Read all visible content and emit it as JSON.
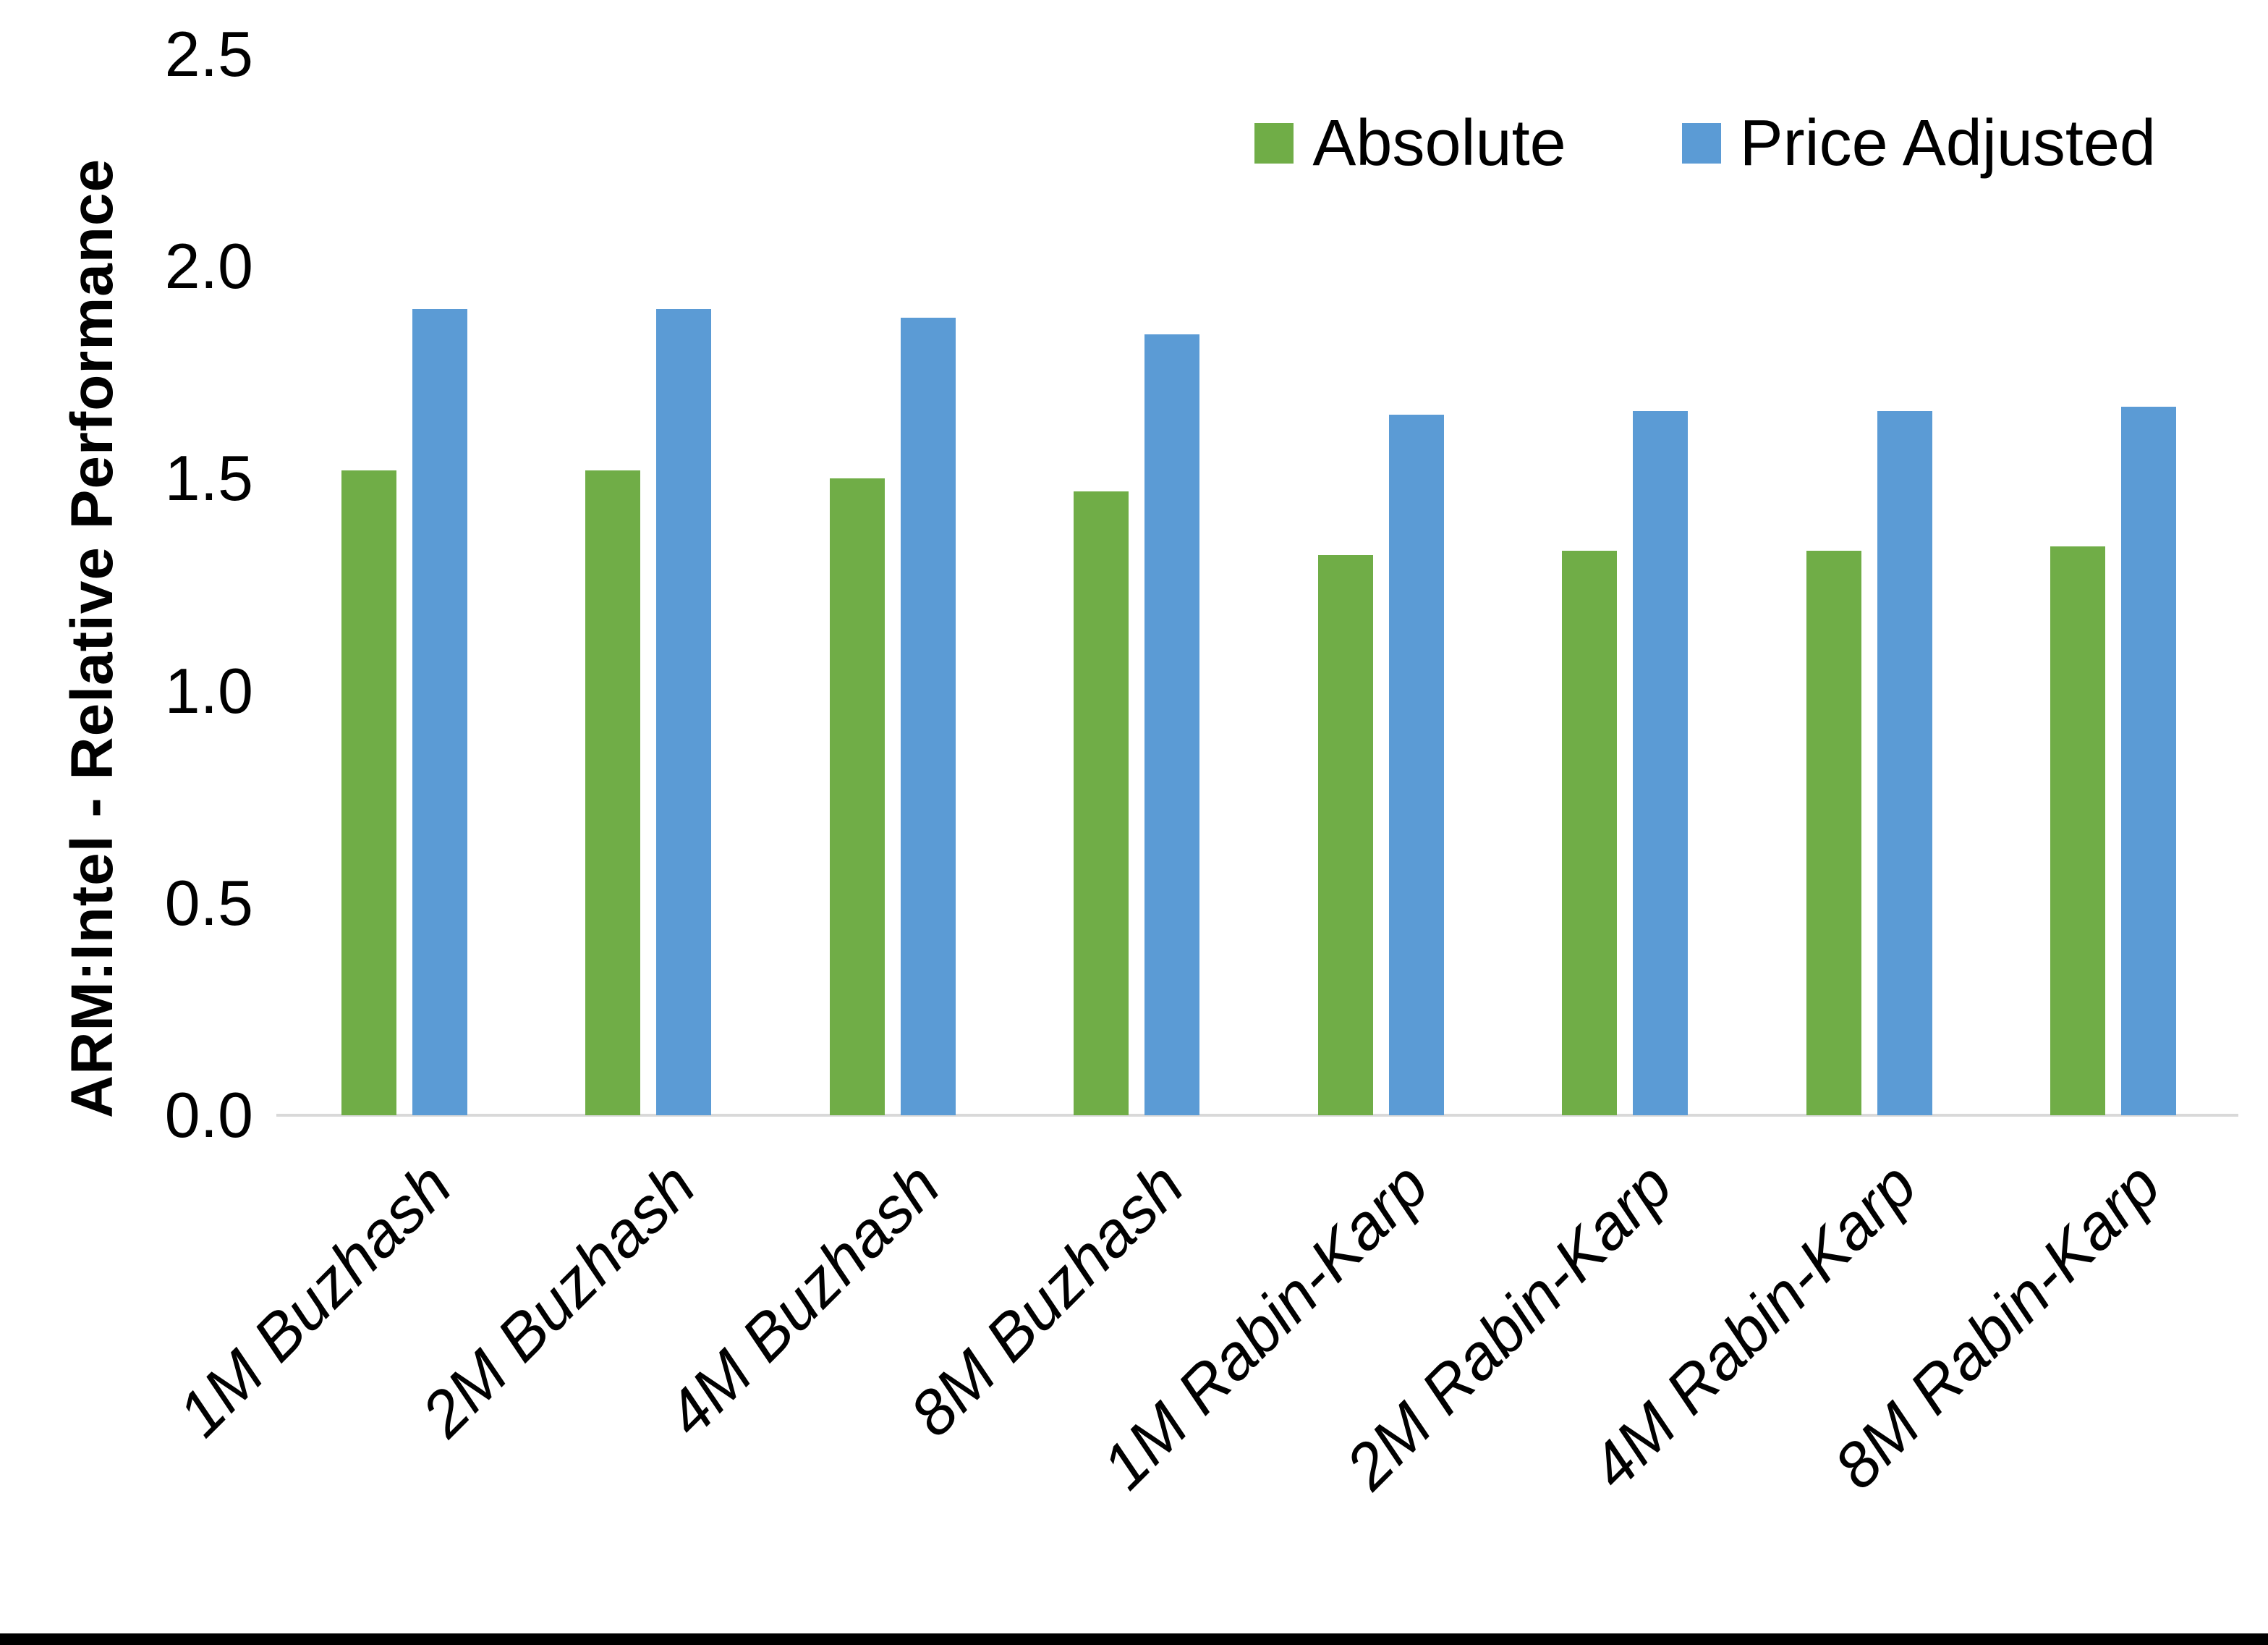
{
  "chart_data": {
    "type": "bar",
    "title": "",
    "xlabel": "",
    "ylabel": "ARM:Intel - Relative Performance",
    "categories": [
      "1M Buzhash",
      "2M Buzhash",
      "4M Buzhash",
      "8M Buzhash",
      "1M Rabin-Karp",
      "2M Rabin-Karp",
      "4M Rabin-Karp",
      "8M Rabin-Karp"
    ],
    "series": [
      {
        "name": "Absolute",
        "color": "#70AD47",
        "values": [
          1.52,
          1.52,
          1.5,
          1.47,
          1.32,
          1.33,
          1.33,
          1.34
        ]
      },
      {
        "name": "Price Adjusted",
        "color": "#5B9BD5",
        "values": [
          1.9,
          1.9,
          1.88,
          1.84,
          1.65,
          1.66,
          1.66,
          1.67
        ]
      }
    ],
    "ylim": [
      0,
      2.5
    ],
    "yticks": [
      "0.0",
      "0.5",
      "1.0",
      "1.5",
      "2.0",
      "2.5"
    ],
    "grid": false,
    "legend_position": "top-right",
    "x_label_rotation_deg": 45,
    "background": "#FFFFFF"
  },
  "colors": {
    "axis_line": "#D9D9D9",
    "text": "#000000",
    "bottom_border": "#000000"
  }
}
